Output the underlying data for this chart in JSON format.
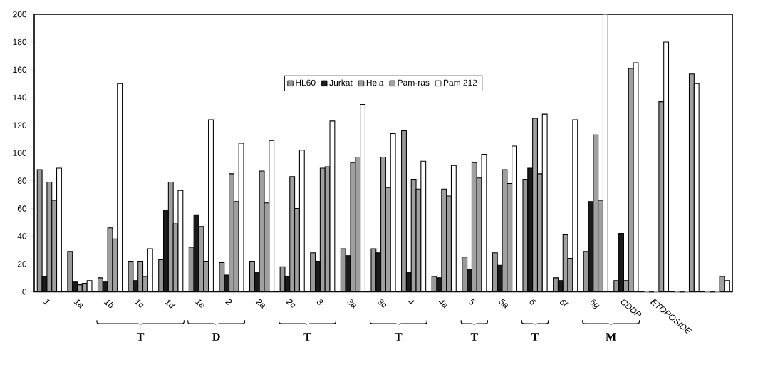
{
  "chart_data": {
    "type": "bar",
    "categories": [
      "1",
      "1a",
      "1b",
      "1c",
      "1d",
      "1e",
      "2",
      "2a",
      "2c",
      "3",
      "3a",
      "3c",
      "4",
      "4a",
      "5",
      "5a",
      "6",
      "6f",
      "6g",
      "CDDP",
      "ETOPOSIDE",
      null,
      null
    ],
    "series": [
      {
        "name": "HL60",
        "color": "#999999",
        "values": [
          88,
          29,
          10,
          22,
          23,
          32,
          21,
          22,
          18,
          28,
          31,
          31,
          116,
          11,
          25,
          28,
          81,
          10,
          29,
          8,
          0,
          0,
          0
        ]
      },
      {
        "name": "Jurkat",
        "color": "#1a1a1a",
        "values": [
          11,
          7,
          7,
          8,
          59,
          55,
          12,
          14,
          11,
          22,
          26,
          28,
          14,
          10,
          16,
          19,
          89,
          8,
          65,
          42,
          0,
          0,
          0
        ]
      },
      {
        "name": "Hela",
        "color": "#a0a0a0",
        "values": [
          79,
          5,
          46,
          22,
          79,
          47,
          85,
          87,
          83,
          89,
          93,
          97,
          81,
          74,
          93,
          88,
          125,
          41,
          113,
          8,
          0,
          0,
          0
        ]
      },
      {
        "name": "Pam-ras",
        "color": "#a0a0a0",
        "values": [
          66,
          6,
          38,
          11,
          49,
          22,
          65,
          64,
          60,
          90,
          97,
          75,
          74,
          69,
          82,
          78,
          85,
          24,
          66,
          161,
          137,
          157,
          11
        ]
      },
      {
        "name": "Pam 212",
        "color": "#ffffff",
        "values": [
          89,
          8,
          150,
          31,
          73,
          124,
          107,
          109,
          102,
          123,
          135,
          114,
          94,
          91,
          99,
          105,
          128,
          124,
          200,
          165,
          180,
          150,
          8
        ]
      }
    ],
    "ylim": [
      0,
      200
    ],
    "yticks": [
      0,
      20,
      40,
      60,
      80,
      100,
      120,
      140,
      160,
      180,
      200
    ],
    "grid": false,
    "legend": "top",
    "annotations": [
      "T",
      "D",
      "T",
      "T",
      "T",
      "T",
      "M"
    ]
  }
}
